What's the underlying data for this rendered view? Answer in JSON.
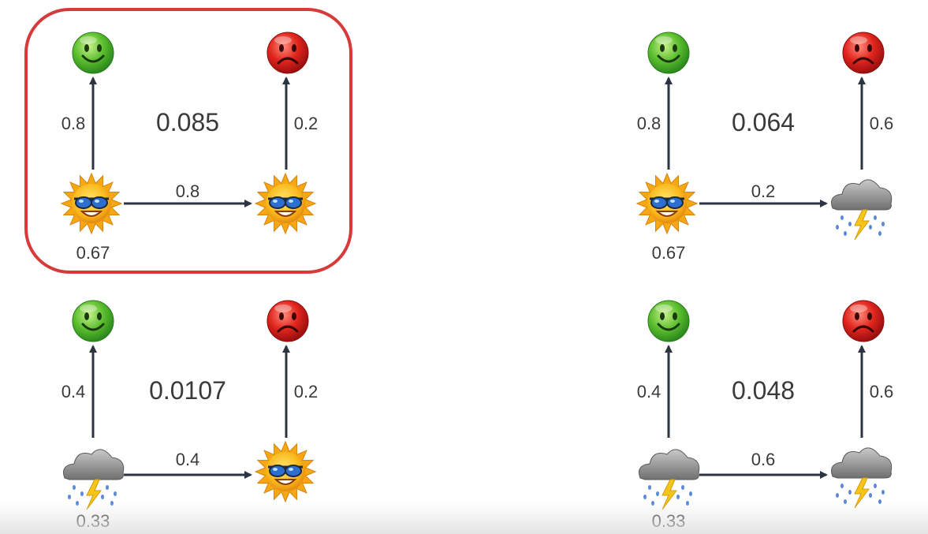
{
  "panels": [
    {
      "id": "sunny-sunny",
      "highlighted": true,
      "start_weather": "sun",
      "next_weather": "sun",
      "initial_prob": "0.67",
      "transition_prob": "0.8",
      "left_emission_prob": "0.8",
      "right_emission_prob": "0.2",
      "joint_prob": "0.085"
    },
    {
      "id": "sunny-rainy",
      "highlighted": false,
      "start_weather": "sun",
      "next_weather": "rain",
      "initial_prob": "0.67",
      "transition_prob": "0.2",
      "left_emission_prob": "0.8",
      "right_emission_prob": "0.6",
      "joint_prob": "0.064"
    },
    {
      "id": "rainy-sunny",
      "highlighted": false,
      "start_weather": "rain",
      "next_weather": "sun",
      "initial_prob": "0.33",
      "transition_prob": "0.4",
      "left_emission_prob": "0.4",
      "right_emission_prob": "0.2",
      "joint_prob": "0.0107"
    },
    {
      "id": "rainy-rainy",
      "highlighted": false,
      "start_weather": "rain",
      "next_weather": "rain",
      "initial_prob": "0.33",
      "transition_prob": "0.6",
      "left_emission_prob": "0.4",
      "right_emission_prob": "0.6",
      "joint_prob": "0.048"
    }
  ],
  "icons": {
    "left_mood": "happy-face-icon",
    "right_mood": "sad-face-icon",
    "sun": "sun-with-sunglasses-icon",
    "rain": "storm-cloud-icon"
  },
  "colors": {
    "happy": "#3aa83a",
    "sad": "#d42020",
    "sun": "#f7b512",
    "cloud": "#8f8f8f",
    "bolt": "#f6c51a",
    "arrow": "#2b3440",
    "highlight": "#d63a3a"
  }
}
